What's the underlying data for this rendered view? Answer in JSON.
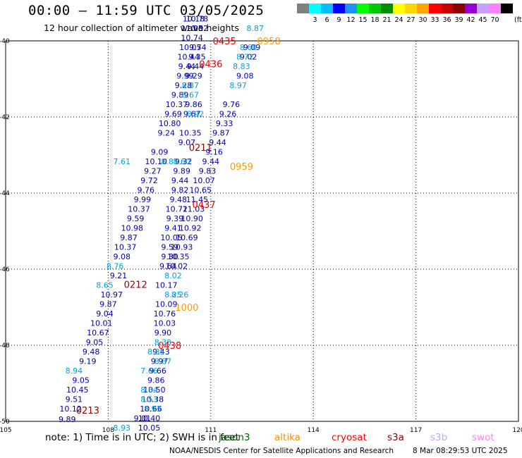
{
  "header": {
    "title": "00:00 – 11:59 UTC 03/05/2025",
    "subtitle": "12 hour collection of altimeter wave heights"
  },
  "legend": {
    "unit": "(ft)",
    "items": [
      {
        "label": "",
        "color": "#808080"
      },
      {
        "label": "3",
        "color": "#00ffff"
      },
      {
        "label": "6",
        "color": "#00bfff"
      },
      {
        "label": "9",
        "color": "#0000ff"
      },
      {
        "label": "12",
        "color": "#1e90ff"
      },
      {
        "label": "15",
        "color": "#00ff00"
      },
      {
        "label": "18",
        "color": "#00c800"
      },
      {
        "label": "21",
        "color": "#008c00"
      },
      {
        "label": "24",
        "color": "#ffff00"
      },
      {
        "label": "27",
        "color": "#ffd700"
      },
      {
        "label": "30",
        "color": "#ffa500"
      },
      {
        "label": "33",
        "color": "#ff0000"
      },
      {
        "label": "36",
        "color": "#c80000"
      },
      {
        "label": "39",
        "color": "#8b0000"
      },
      {
        "label": "42",
        "color": "#9400d3"
      },
      {
        "label": "45",
        "color": "#c8a0ff"
      },
      {
        "label": "70",
        "color": "#ff80ff"
      },
      {
        "label": "",
        "color": "#000000"
      }
    ]
  },
  "footer": {
    "note": "note:  1) Time is in UTC; 2) SWH is in feet",
    "satellites": [
      {
        "name": "jason3",
        "color": "#006400"
      },
      {
        "name": "altika",
        "color": "#ff8c00"
      },
      {
        "name": "cryosat",
        "color": "#ff0000"
      },
      {
        "name": "s3a",
        "color": "#8b0000"
      },
      {
        "name": "s3b",
        "color": "#c8a0ff"
      },
      {
        "name": "swot",
        "color": "#ff80ff"
      }
    ],
    "credit": "NOAA/NESDIS Center for Satellite Applications and Research",
    "timestamp": "8 Mar 08:29:53 UTC 2025"
  },
  "chart_data": {
    "type": "scatter",
    "title": "00:00 – 11:59 UTC 03/05/2025",
    "xlabel": "",
    "ylabel": "",
    "xlim": [
      105,
      120
    ],
    "ylim": [
      -50,
      -40
    ],
    "x_ticks": [
      105,
      108,
      111,
      114,
      117,
      120
    ],
    "y_ticks": [
      -40,
      -42,
      -44,
      -46,
      -48,
      -50
    ],
    "grid": true,
    "colors": {
      "dark_blue": "#0000aa",
      "light_blue": "#00a0e0",
      "red": "#ee0000",
      "orange": "#ff9900",
      "dark_red": "#990000"
    },
    "time_labels": [
      {
        "text": "0213",
        "lon": 107.4,
        "lat": -49.7,
        "color": "#990000"
      },
      {
        "text": "0212",
        "lon": 108.8,
        "lat": -46.4,
        "color": "#990000"
      },
      {
        "text": "0211",
        "lon": 110.7,
        "lat": -42.8,
        "color": "#990000"
      },
      {
        "text": "0958",
        "lon": 112.7,
        "lat": -40.0,
        "color": "#ff9900"
      },
      {
        "text": "0959",
        "lon": 111.9,
        "lat": -43.3,
        "color": "#ff9900"
      },
      {
        "text": "1000",
        "lon": 110.3,
        "lat": -47.0,
        "color": "#ff9900"
      },
      {
        "text": "0435",
        "lon": 111.4,
        "lat": -40.0,
        "color": "#ee0000"
      },
      {
        "text": "0436",
        "lon": 111.0,
        "lat": -40.6,
        "color": "#ee0000"
      },
      {
        "text": "0437",
        "lon": 110.8,
        "lat": -44.3,
        "color": "#ee0000"
      },
      {
        "text": "0438",
        "lon": 109.8,
        "lat": -48.0,
        "color": "#ee0000"
      }
    ],
    "series": [
      {
        "color": "#0000aa",
        "points": [
          {
            "lon": 106.8,
            "lat": -49.94,
            "v": "9.89"
          },
          {
            "lon": 106.9,
            "lat": -49.67,
            "v": "10.12"
          },
          {
            "lon": 107.0,
            "lat": -49.42,
            "v": "9.51"
          },
          {
            "lon": 107.1,
            "lat": -49.17,
            "v": "10.45"
          },
          {
            "lon": 107.2,
            "lat": -48.92,
            "v": "9.05"
          },
          {
            "lon": 107.4,
            "lat": -48.42,
            "v": "9.19"
          },
          {
            "lon": 107.5,
            "lat": -48.17,
            "v": "9.48"
          },
          {
            "lon": 107.6,
            "lat": -47.92,
            "v": "9.05"
          },
          {
            "lon": 107.7,
            "lat": -47.67,
            "v": "10.67"
          },
          {
            "lon": 107.8,
            "lat": -47.42,
            "v": "10.01"
          },
          {
            "lon": 107.9,
            "lat": -47.17,
            "v": "9.04"
          },
          {
            "lon": 108.0,
            "lat": -46.92,
            "v": "9.87"
          },
          {
            "lon": 108.1,
            "lat": -46.67,
            "v": "10.97"
          },
          {
            "lon": 108.3,
            "lat": -46.17,
            "v": "9.21"
          },
          {
            "lon": 108.4,
            "lat": -45.67,
            "v": "9.08"
          },
          {
            "lon": 108.5,
            "lat": -45.42,
            "v": "10.37"
          },
          {
            "lon": 108.6,
            "lat": -45.17,
            "v": "9.87"
          },
          {
            "lon": 108.7,
            "lat": -44.92,
            "v": "10.98"
          },
          {
            "lon": 108.8,
            "lat": -44.67,
            "v": "9.59"
          },
          {
            "lon": 108.9,
            "lat": -44.42,
            "v": "10.37"
          },
          {
            "lon": 109.0,
            "lat": -44.17,
            "v": "9.99"
          },
          {
            "lon": 109.1,
            "lat": -43.92,
            "v": "9.76"
          },
          {
            "lon": 109.2,
            "lat": -43.67,
            "v": "9.72"
          },
          {
            "lon": 109.3,
            "lat": -43.42,
            "v": "9.27"
          },
          {
            "lon": 109.4,
            "lat": -43.17,
            "v": "10.10"
          },
          {
            "lon": 109.5,
            "lat": -42.92,
            "v": "9.09"
          },
          {
            "lon": 109.7,
            "lat": -42.42,
            "v": "9.24"
          },
          {
            "lon": 109.8,
            "lat": -42.17,
            "v": "10.80"
          },
          {
            "lon": 109.9,
            "lat": -41.92,
            "v": "9.69"
          },
          {
            "lon": 110.0,
            "lat": -41.67,
            "v": "10.37"
          },
          {
            "lon": 110.1,
            "lat": -41.42,
            "v": "9.89"
          },
          {
            "lon": 110.2,
            "lat": -41.17,
            "v": "9.28"
          },
          {
            "lon": 110.25,
            "lat": -40.92,
            "v": "9.99"
          },
          {
            "lon": 110.3,
            "lat": -40.67,
            "v": "9.44"
          },
          {
            "lon": 110.35,
            "lat": -40.42,
            "v": "10.44"
          },
          {
            "lon": 110.4,
            "lat": -40.17,
            "v": "10.05"
          },
          {
            "lon": 110.45,
            "lat": -39.92,
            "v": "10.74"
          },
          {
            "lon": 110.45,
            "lat": -39.67,
            "v": "11.05"
          },
          {
            "lon": 110.5,
            "lat": -39.42,
            "v": "10.18"
          },
          {
            "lon": 110.6,
            "lat": -39.67,
            "v": "10.32"
          },
          {
            "lon": 110.6,
            "lat": -39.42,
            "v": "10.78"
          },
          {
            "lon": 110.62,
            "lat": -40.17,
            "v": "9.74"
          },
          {
            "lon": 110.6,
            "lat": -40.42,
            "v": "9.35"
          },
          {
            "lon": 110.55,
            "lat": -40.67,
            "v": "9.44"
          },
          {
            "lon": 110.5,
            "lat": -40.92,
            "v": "9.29"
          },
          {
            "lon": 110.5,
            "lat": -41.67,
            "v": "9.86"
          },
          {
            "lon": 110.45,
            "lat": -41.92,
            "v": "9.67"
          },
          {
            "lon": 110.4,
            "lat": -42.42,
            "v": "10.35"
          },
          {
            "lon": 110.3,
            "lat": -42.67,
            "v": "9.07"
          },
          {
            "lon": 110.2,
            "lat": -43.17,
            "v": "9.32"
          },
          {
            "lon": 110.15,
            "lat": -43.42,
            "v": "9.89"
          },
          {
            "lon": 110.1,
            "lat": -43.67,
            "v": "9.44"
          },
          {
            "lon": 110.1,
            "lat": -43.92,
            "v": "9.82"
          },
          {
            "lon": 110.05,
            "lat": -44.17,
            "v": "9.48"
          },
          {
            "lon": 110.0,
            "lat": -44.42,
            "v": "10.72"
          },
          {
            "lon": 109.95,
            "lat": -44.67,
            "v": "9.39"
          },
          {
            "lon": 109.9,
            "lat": -44.92,
            "v": "9.41"
          },
          {
            "lon": 109.85,
            "lat": -45.17,
            "v": "10.05"
          },
          {
            "lon": 109.8,
            "lat": -45.42,
            "v": "9.59"
          },
          {
            "lon": 109.8,
            "lat": -45.67,
            "v": "9.30"
          },
          {
            "lon": 109.75,
            "lat": -45.92,
            "v": "9.64"
          },
          {
            "lon": 109.7,
            "lat": -46.42,
            "v": "10.17"
          },
          {
            "lon": 109.7,
            "lat": -46.92,
            "v": "10.09"
          },
          {
            "lon": 109.65,
            "lat": -47.17,
            "v": "10.76"
          },
          {
            "lon": 109.65,
            "lat": -47.42,
            "v": "10.03"
          },
          {
            "lon": 109.6,
            "lat": -47.67,
            "v": "9.90"
          },
          {
            "lon": 109.55,
            "lat": -48.17,
            "v": "9.43"
          },
          {
            "lon": 109.5,
            "lat": -48.42,
            "v": "9.97"
          },
          {
            "lon": 109.45,
            "lat": -48.67,
            "v": "9.66"
          },
          {
            "lon": 109.4,
            "lat": -48.92,
            "v": "9.86"
          },
          {
            "lon": 109.35,
            "lat": -49.17,
            "v": "10.50"
          },
          {
            "lon": 109.3,
            "lat": -49.42,
            "v": "10.38"
          },
          {
            "lon": 109.25,
            "lat": -49.67,
            "v": "10.66"
          },
          {
            "lon": 109.0,
            "lat": -49.92,
            "v": "9.01"
          },
          {
            "lon": 109.2,
            "lat": -49.92,
            "v": "10.40"
          },
          {
            "lon": 109.2,
            "lat": -50.17,
            "v": "10.05"
          },
          {
            "lon": 110.05,
            "lat": -45.67,
            "v": "10.35"
          },
          {
            "lon": 110.0,
            "lat": -45.92,
            "v": "10.02"
          },
          {
            "lon": 110.15,
            "lat": -45.42,
            "v": "10.93"
          },
          {
            "lon": 110.3,
            "lat": -45.17,
            "v": "10.69"
          },
          {
            "lon": 110.4,
            "lat": -44.92,
            "v": "10.92"
          },
          {
            "lon": 110.45,
            "lat": -44.67,
            "v": "10.90"
          },
          {
            "lon": 110.5,
            "lat": -44.42,
            "v": "11.03"
          },
          {
            "lon": 110.6,
            "lat": -44.17,
            "v": "11.45"
          },
          {
            "lon": 110.7,
            "lat": -43.92,
            "v": "10.65"
          },
          {
            "lon": 110.8,
            "lat": -43.67,
            "v": "10.07"
          },
          {
            "lon": 110.9,
            "lat": -43.42,
            "v": "9.83"
          },
          {
            "lon": 111.0,
            "lat": -43.17,
            "v": "9.44"
          },
          {
            "lon": 111.1,
            "lat": -42.92,
            "v": "9.16"
          },
          {
            "lon": 111.2,
            "lat": -42.67,
            "v": "9.44"
          },
          {
            "lon": 111.3,
            "lat": -42.42,
            "v": "9.87"
          },
          {
            "lon": 111.4,
            "lat": -42.17,
            "v": "9.33"
          },
          {
            "lon": 111.5,
            "lat": -41.92,
            "v": "9.26"
          },
          {
            "lon": 111.6,
            "lat": -41.67,
            "v": "9.76"
          },
          {
            "lon": 112.0,
            "lat": -40.92,
            "v": "9.08"
          },
          {
            "lon": 112.1,
            "lat": -40.42,
            "v": "9.02"
          },
          {
            "lon": 112.2,
            "lat": -40.17,
            "v": "9.09"
          }
        ]
      },
      {
        "color": "#00a0e0",
        "points": [
          {
            "lon": 107.0,
            "lat": -48.67,
            "v": "8.94"
          },
          {
            "lon": 107.9,
            "lat": -46.42,
            "v": "8.65"
          },
          {
            "lon": 108.2,
            "lat": -45.92,
            "v": "8.76"
          },
          {
            "lon": 108.4,
            "lat": -43.17,
            "v": "7.61"
          },
          {
            "lon": 109.2,
            "lat": -48.67,
            "v": "7.66"
          },
          {
            "lon": 109.2,
            "lat": -49.17,
            "v": "8.54"
          },
          {
            "lon": 109.2,
            "lat": -49.42,
            "v": "8.53"
          },
          {
            "lon": 109.3,
            "lat": -49.67,
            "v": "8.93"
          },
          {
            "lon": 108.4,
            "lat": -50.17,
            "v": "8.93"
          },
          {
            "lon": 109.4,
            "lat": -48.17,
            "v": "8.85"
          },
          {
            "lon": 109.6,
            "lat": -48.42,
            "v": "8.87"
          },
          {
            "lon": 109.6,
            "lat": -47.92,
            "v": "8.38"
          },
          {
            "lon": 109.9,
            "lat": -46.67,
            "v": "8.25"
          },
          {
            "lon": 109.9,
            "lat": -46.17,
            "v": "8.02"
          },
          {
            "lon": 110.1,
            "lat": -46.67,
            "v": "8.26"
          },
          {
            "lon": 109.8,
            "lat": -43.17,
            "v": "8.87"
          },
          {
            "lon": 110.15,
            "lat": -43.17,
            "v": "8.60"
          },
          {
            "lon": 110.4,
            "lat": -41.42,
            "v": "8.67"
          },
          {
            "lon": 110.4,
            "lat": -41.17,
            "v": "8.87"
          },
          {
            "lon": 110.55,
            "lat": -41.92,
            "v": "8.92"
          },
          {
            "lon": 111.8,
            "lat": -41.17,
            "v": "8.97"
          },
          {
            "lon": 111.9,
            "lat": -40.67,
            "v": "8.83"
          },
          {
            "lon": 112.0,
            "lat": -40.42,
            "v": "8.72"
          },
          {
            "lon": 112.1,
            "lat": -40.17,
            "v": "8.60"
          },
          {
            "lon": 112.3,
            "lat": -39.67,
            "v": "8.87"
          }
        ]
      }
    ]
  }
}
